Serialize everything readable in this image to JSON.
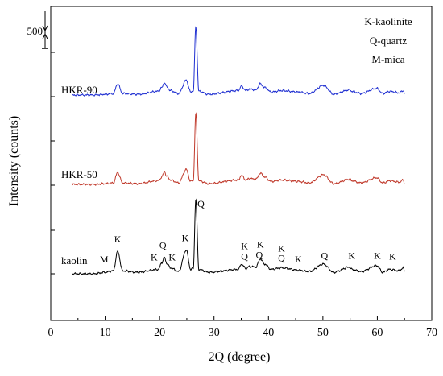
{
  "chart_data": {
    "type": "line",
    "xlabel": "2Q (degree)",
    "ylabel": "Intensity (counts)",
    "xlim": [
      0,
      70
    ],
    "x_ticks": [
      0,
      10,
      20,
      30,
      40,
      50,
      60,
      70
    ],
    "grid": false,
    "scale_bar_label": "500",
    "scale_bar_counts": 500,
    "legend": {
      "placement": "top-right",
      "entries": [
        "K-kaolinite",
        "Q-quartz",
        "M-mica"
      ]
    },
    "series": [
      {
        "name": "kaolin",
        "color": "#000000",
        "offset": 0,
        "x": [
          4,
          8,
          10,
          11.5,
          12.3,
          13.2,
          16,
          19.8,
          20.4,
          20.9,
          21.3,
          22,
          23.5,
          24.9,
          25.7,
          26.2,
          26.65,
          27.2,
          29,
          34.5,
          35,
          35.9,
          36.5,
          37.7,
          38.5,
          39.3,
          40.5,
          42.4,
          45.5,
          47.5,
          50.1,
          52,
          54.9,
          55.3,
          57,
          59.9,
          61,
          62.3,
          64,
          64.8,
          65
        ],
        "y": [
          0,
          0,
          20,
          40,
          300,
          40,
          20,
          60,
          150,
          220,
          140,
          80,
          30,
          320,
          60,
          80,
          1000,
          60,
          20,
          60,
          130,
          70,
          100,
          90,
          200,
          130,
          60,
          80,
          50,
          30,
          130,
          20,
          90,
          60,
          30,
          110,
          20,
          60,
          40,
          80,
          20
        ]
      },
      {
        "name": "HKR-50",
        "color": "#c0392b",
        "offset": 1200,
        "x": [
          4,
          8,
          10,
          11.5,
          12.3,
          13.2,
          16,
          19.8,
          20.4,
          20.9,
          21.3,
          22,
          23.5,
          24.9,
          25.7,
          26.2,
          26.65,
          27.2,
          29,
          34.5,
          35,
          35.9,
          36.5,
          37.7,
          38.5,
          39.3,
          40.5,
          42.4,
          45.5,
          47.5,
          50.1,
          52,
          54.9,
          55.3,
          57,
          59.9,
          61,
          62.3,
          64,
          64.8,
          65
        ],
        "y": [
          0,
          0,
          10,
          20,
          160,
          20,
          10,
          50,
          100,
          170,
          110,
          60,
          20,
          200,
          40,
          60,
          950,
          50,
          10,
          60,
          120,
          60,
          80,
          70,
          150,
          100,
          40,
          60,
          40,
          20,
          130,
          10,
          70,
          50,
          20,
          90,
          20,
          50,
          30,
          60,
          10
        ]
      },
      {
        "name": "HKR-90",
        "color": "#1f2fd1",
        "offset": 2400,
        "x": [
          4,
          8,
          10,
          11.5,
          12.3,
          13.2,
          16,
          19.8,
          20.4,
          20.9,
          21.3,
          22,
          23.5,
          24.9,
          25.7,
          26.2,
          26.65,
          27.2,
          29,
          34.5,
          35,
          35.9,
          36.5,
          37.7,
          38.5,
          39.3,
          40.5,
          42.4,
          45.5,
          47.5,
          50.1,
          52,
          54.9,
          55.3,
          57,
          59.9,
          61,
          62.3,
          64,
          64.8,
          65
        ],
        "y": [
          0,
          0,
          10,
          20,
          150,
          20,
          10,
          50,
          100,
          170,
          110,
          60,
          20,
          200,
          40,
          60,
          920,
          50,
          10,
          60,
          120,
          60,
          80,
          70,
          150,
          100,
          40,
          60,
          40,
          20,
          130,
          10,
          70,
          50,
          20,
          90,
          20,
          50,
          30,
          60,
          10
        ]
      }
    ],
    "annotations": [
      {
        "text": "M",
        "x": 9.8,
        "counts": 150
      },
      {
        "text": "K",
        "x": 12.3,
        "counts": 420
      },
      {
        "text": "K",
        "x": 19.0,
        "counts": 180
      },
      {
        "text": "Q",
        "x": 20.6,
        "counts": 340
      },
      {
        "text": "K",
        "x": 22.3,
        "counts": 180
      },
      {
        "text": "K",
        "x": 24.7,
        "counts": 440
      },
      {
        "text": "Q",
        "x": 27.6,
        "counts": 900
      },
      {
        "text": "K",
        "x": 35.6,
        "counts": 330
      },
      {
        "text": "Q",
        "x": 35.6,
        "counts": 190
      },
      {
        "text": "K",
        "x": 38.5,
        "counts": 350
      },
      {
        "text": "Q",
        "x": 38.3,
        "counts": 210
      },
      {
        "text": "K",
        "x": 42.4,
        "counts": 300
      },
      {
        "text": "Q",
        "x": 42.4,
        "counts": 170
      },
      {
        "text": "K",
        "x": 45.5,
        "counts": 150
      },
      {
        "text": "Q",
        "x": 50.3,
        "counts": 200
      },
      {
        "text": "K",
        "x": 55.3,
        "counts": 200
      },
      {
        "text": "K",
        "x": 60.0,
        "counts": 200
      },
      {
        "text": "K",
        "x": 62.8,
        "counts": 190
      }
    ]
  }
}
